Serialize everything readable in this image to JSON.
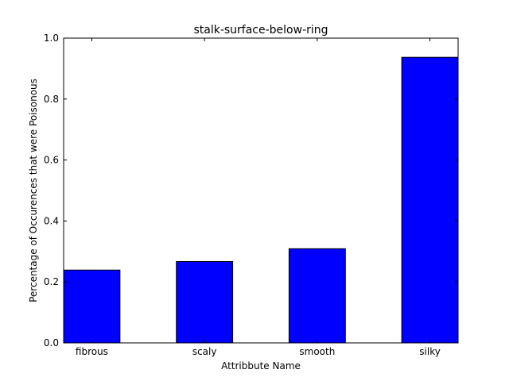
{
  "chart_data": {
    "type": "bar",
    "title": "stalk-surface-below-ring",
    "xlabel": "Attribbute Name",
    "ylabel": "Percentage of Occurences that were Poisonous",
    "categories": [
      "fibrous",
      "scaly",
      "smooth",
      "silky"
    ],
    "values": [
      0.239,
      0.267,
      0.309,
      0.937
    ],
    "ylim": [
      0.0,
      1.0
    ],
    "yticks": [
      "0.0",
      "0.2",
      "0.4",
      "0.6",
      "0.8",
      "1.0"
    ],
    "grid": false,
    "bar_color": "#0000ff",
    "edge_color": "#000000"
  }
}
